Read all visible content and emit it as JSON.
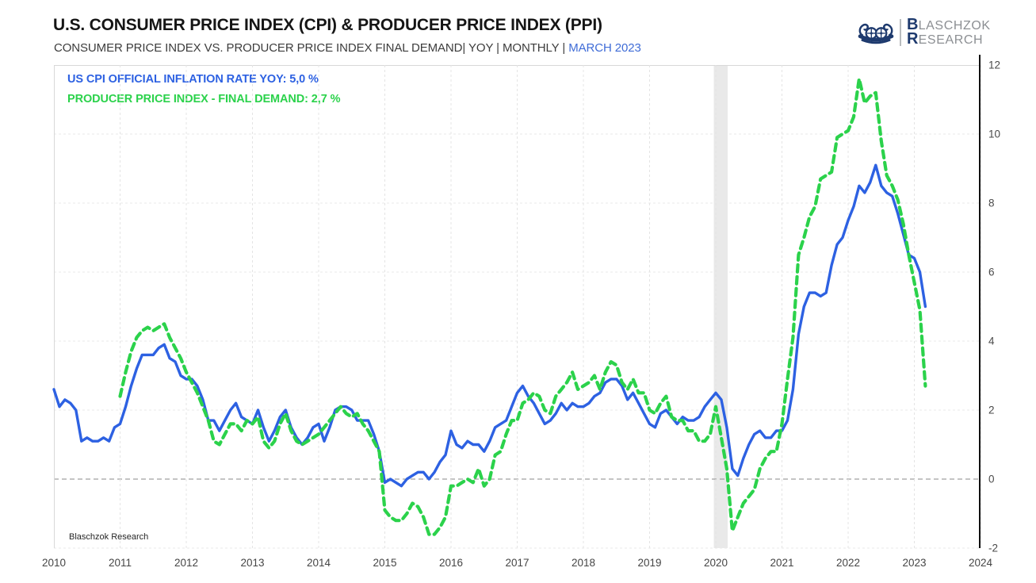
{
  "header": {
    "title": "U.S. CONSUMER PRICE INDEX (CPI) & PRODUCER PRICE INDEX (PPI)",
    "subtitle_prefix": "CONSUMER PRICE INDEX VS. PRODUCER PRICE INDEX FINAL DEMAND| YOY | MONTHLY | ",
    "subtitle_highlight": "MARCH 2023"
  },
  "logo": {
    "line1_initial": "B",
    "line1_rest": "LASCHZOK",
    "line2_initial": "R",
    "line2_rest": "ESEARCH",
    "navy": "#1e3a6e",
    "gray": "#8c8f93"
  },
  "legend": [
    {
      "label": "US CPI OFFICIAL INFLATION RATE YOY: 5,0 %",
      "color": "#2d61e2"
    },
    {
      "label": "PRODUCER PRICE INDEX - FINAL DEMAND: 2,7 %",
      "color": "#2bd24b"
    }
  ],
  "watermark": "Blaschzok Research",
  "chart_data": {
    "type": "line",
    "title": "U.S. Consumer Price Index (CPI) & Producer Price Index (PPI), YoY %, monthly, through March 2023",
    "x_axis": {
      "min": 2010,
      "max": 2024,
      "ticks": [
        2010,
        2011,
        2012,
        2013,
        2014,
        2015,
        2016,
        2017,
        2018,
        2019,
        2020,
        2021,
        2022,
        2023,
        2024
      ]
    },
    "y_axis": {
      "min": -2,
      "max": 12,
      "ticks": [
        12,
        10,
        8,
        6,
        4,
        2,
        0,
        -2
      ]
    },
    "zero_line": 0,
    "grid": "on",
    "legend_position": "top-left",
    "recession_band": {
      "from": 2019.97,
      "to": 2020.18,
      "color": "#e9e9e9"
    },
    "series": [
      {
        "name": "US CPI official inflation rate YoY %",
        "color": "#2d61e2",
        "style": "solid",
        "width": 3.4,
        "start_year": 2010,
        "start_month": 1,
        "last_value_label": "5,0 %",
        "values": [
          2.6,
          2.1,
          2.3,
          2.2,
          2.0,
          1.1,
          1.2,
          1.1,
          1.1,
          1.2,
          1.1,
          1.5,
          1.6,
          2.1,
          2.7,
          3.2,
          3.6,
          3.6,
          3.6,
          3.8,
          3.9,
          3.5,
          3.4,
          3.0,
          2.9,
          2.9,
          2.7,
          2.3,
          1.7,
          1.7,
          1.4,
          1.7,
          2.0,
          2.2,
          1.8,
          1.7,
          1.6,
          2.0,
          1.5,
          1.1,
          1.4,
          1.8,
          2.0,
          1.5,
          1.2,
          1.0,
          1.2,
          1.5,
          1.6,
          1.1,
          1.5,
          2.0,
          2.1,
          2.1,
          2.0,
          1.7,
          1.7,
          1.7,
          1.3,
          0.8,
          -0.1,
          0.0,
          -0.1,
          -0.2,
          0.0,
          0.1,
          0.2,
          0.2,
          0.0,
          0.2,
          0.5,
          0.7,
          1.4,
          1.0,
          0.9,
          1.1,
          1.0,
          1.0,
          0.8,
          1.1,
          1.5,
          1.6,
          1.7,
          2.1,
          2.5,
          2.7,
          2.4,
          2.2,
          1.9,
          1.6,
          1.7,
          1.9,
          2.2,
          2.0,
          2.2,
          2.1,
          2.1,
          2.2,
          2.4,
          2.5,
          2.8,
          2.9,
          2.9,
          2.7,
          2.3,
          2.5,
          2.2,
          1.9,
          1.6,
          1.5,
          1.9,
          2.0,
          1.8,
          1.6,
          1.8,
          1.7,
          1.7,
          1.8,
          2.1,
          2.3,
          2.5,
          2.3,
          1.5,
          0.3,
          0.1,
          0.6,
          1.0,
          1.3,
          1.4,
          1.2,
          1.2,
          1.4,
          1.4,
          1.7,
          2.6,
          4.2,
          5.0,
          5.4,
          5.4,
          5.3,
          5.4,
          6.2,
          6.8,
          7.0,
          7.5,
          7.9,
          8.5,
          8.3,
          8.6,
          9.1,
          8.5,
          8.3,
          8.2,
          7.7,
          7.1,
          6.5,
          6.4,
          6.0,
          5.0
        ]
      },
      {
        "name": "Producer Price Index - Final Demand YoY %",
        "color": "#2bd24b",
        "style": "dashed",
        "width": 4.2,
        "dash": "9 6",
        "start_year": 2011,
        "start_month": 1,
        "last_value_label": "2,7 %",
        "values": [
          2.4,
          3.1,
          3.7,
          4.1,
          4.3,
          4.4,
          4.3,
          4.4,
          4.5,
          4.1,
          3.8,
          3.5,
          3.1,
          2.8,
          2.5,
          2.1,
          1.7,
          1.1,
          1.0,
          1.3,
          1.6,
          1.6,
          1.4,
          1.7,
          1.6,
          1.8,
          1.1,
          0.9,
          1.1,
          1.6,
          1.9,
          1.4,
          1.1,
          1.0,
          1.1,
          1.2,
          1.3,
          1.5,
          1.7,
          1.9,
          2.1,
          1.9,
          1.8,
          1.9,
          1.6,
          1.4,
          1.1,
          0.8,
          -0.9,
          -1.1,
          -1.2,
          -1.2,
          -1.0,
          -0.7,
          -0.8,
          -1.1,
          -1.6,
          -1.6,
          -1.4,
          -1.1,
          -0.2,
          -0.2,
          -0.1,
          0.0,
          -0.1,
          0.3,
          -0.2,
          0.0,
          0.7,
          0.8,
          1.3,
          1.7,
          1.7,
          2.2,
          2.3,
          2.5,
          2.4,
          2.0,
          1.9,
          2.4,
          2.6,
          2.8,
          3.1,
          2.6,
          2.7,
          2.8,
          3.0,
          2.6,
          3.1,
          3.4,
          3.3,
          2.8,
          2.6,
          2.9,
          2.5,
          2.5,
          2.0,
          1.9,
          2.2,
          2.4,
          1.8,
          1.7,
          1.7,
          1.4,
          1.4,
          1.1,
          1.1,
          1.3,
          2.1,
          1.2,
          0.3,
          -1.5,
          -1.1,
          -0.7,
          -0.5,
          -0.3,
          0.3,
          0.6,
          0.8,
          0.8,
          1.6,
          2.9,
          4.1,
          6.5,
          7.0,
          7.6,
          7.9,
          8.7,
          8.8,
          8.9,
          9.9,
          10.0,
          10.1,
          10.5,
          11.6,
          10.9,
          11.1,
          11.2,
          9.8,
          8.8,
          8.5,
          8.1,
          7.4,
          6.5,
          5.7,
          4.9,
          2.7
        ]
      }
    ]
  }
}
